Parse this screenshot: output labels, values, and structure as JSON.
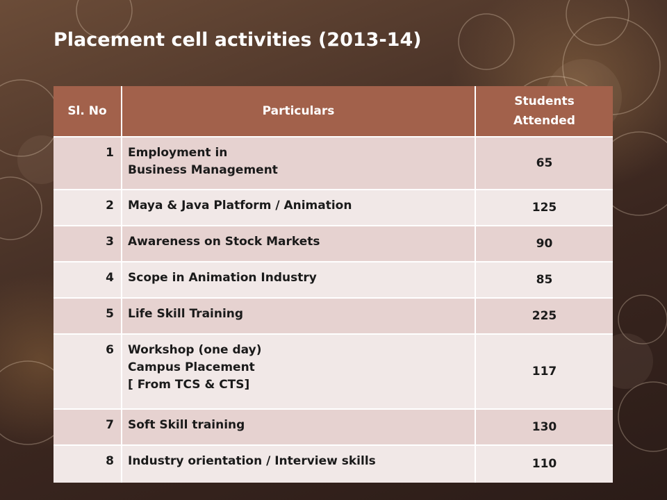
{
  "slide": {
    "title": "Placement cell activities (2013-14)"
  },
  "table": {
    "headers": [
      "Sl. No",
      "Particulars",
      "Students Attended"
    ],
    "rows": [
      {
        "no": "1",
        "lines": [
          "Employment in",
          "Business Management"
        ],
        "attended": "65"
      },
      {
        "no": "2",
        "lines": [
          "Maya & Java Platform / Animation"
        ],
        "attended": "125"
      },
      {
        "no": "3",
        "lines": [
          "Awareness on Stock Markets"
        ],
        "attended": "90"
      },
      {
        "no": "4",
        "lines": [
          "Scope in Animation Industry"
        ],
        "attended": "85"
      },
      {
        "no": "5",
        "lines": [
          "Life Skill Training"
        ],
        "attended": "225"
      },
      {
        "no": "6",
        "lines": [
          "Workshop (one day)",
          "Campus Placement",
          "[ From TCS & CTS]"
        ],
        "attended": "117"
      },
      {
        "no": "7",
        "lines": [
          "Soft Skill training"
        ],
        "attended": "130"
      },
      {
        "no": "8",
        "lines": [
          "Industry orientation / Interview skills"
        ],
        "attended": "110"
      }
    ]
  },
  "colors": {
    "header_bg": "#a2614b",
    "row_dark": "#e6d2d0",
    "row_light": "#f1e8e7",
    "title_text": "#ffffff"
  }
}
